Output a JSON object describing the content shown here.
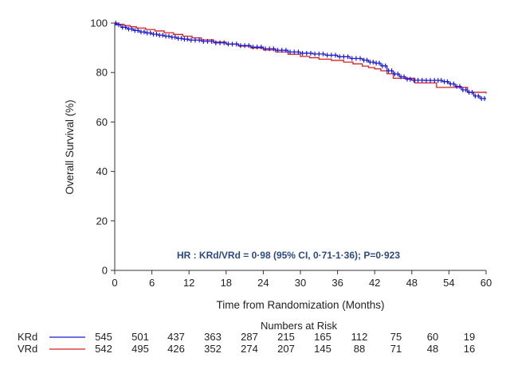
{
  "chart_data": {
    "type": "line",
    "subtype": "kaplan-meier",
    "title": "",
    "xlabel": "Time from Randomization (Months)",
    "ylabel": "Overall Survival (%)",
    "xlim": [
      0,
      60
    ],
    "ylim": [
      0,
      100
    ],
    "x_ticks": [
      0,
      6,
      12,
      18,
      24,
      30,
      36,
      42,
      48,
      54,
      60
    ],
    "y_ticks": [
      0,
      20,
      40,
      60,
      80,
      100
    ],
    "grid": false,
    "annotation": "HR : KRd/VRd = 0·98 (95% CI, 0·71-1·36);  P=0·923",
    "series": [
      {
        "name": "KRd",
        "color": "#1a1ad6",
        "censor_marks": true,
        "x": [
          0,
          0.3,
          1.0,
          2.0,
          3.0,
          4.0,
          5.0,
          6.0,
          7.0,
          8.0,
          9.0,
          10.0,
          11.0,
          12.0,
          14.0,
          16.0,
          18.0,
          20.0,
          22.0,
          24.0,
          26.0,
          28.0,
          30.0,
          32.0,
          34.0,
          36.0,
          38.0,
          40.0,
          41.0,
          42.0,
          43.0,
          44.0,
          45.0,
          46.0,
          47.0,
          48.0,
          50.0,
          52.0,
          53.0,
          54.0,
          55.0,
          56.0,
          57.0,
          58.0,
          59.0,
          60.0
        ],
        "y": [
          100,
          99.3,
          98.3,
          97.6,
          97.0,
          96.4,
          96.0,
          95.5,
          95.1,
          94.7,
          94.3,
          93.8,
          93.5,
          93.1,
          92.6,
          92.0,
          91.5,
          90.9,
          90.3,
          89.6,
          89.0,
          88.3,
          87.8,
          87.5,
          87.0,
          86.4,
          85.7,
          85.0,
          84.2,
          83.8,
          82.7,
          80.7,
          79.4,
          78.3,
          77.3,
          76.9,
          76.8,
          76.8,
          76.3,
          75.4,
          74.4,
          73.0,
          72.0,
          70.5,
          69.5,
          69.5
        ]
      },
      {
        "name": "VRd",
        "color": "#d42020",
        "censor_marks": false,
        "x": [
          0,
          0.5,
          1.5,
          2.5,
          3.5,
          5.0,
          6.5,
          8.0,
          9.5,
          11.0,
          12.5,
          14.0,
          16.0,
          18.0,
          20.0,
          22.0,
          24.0,
          26.0,
          28.0,
          30.0,
          31.5,
          33.0,
          35.0,
          37.0,
          38.5,
          40.0,
          41.0,
          42.0,
          43.0,
          44.0,
          45.0,
          46.0,
          47.0,
          48.5,
          50.0,
          51.0,
          52.0,
          54.0,
          55.0,
          56.0,
          57.0,
          58.0,
          59.0,
          60.0
        ],
        "y": [
          100,
          99.5,
          99.0,
          98.5,
          98.0,
          97.4,
          96.8,
          96.1,
          95.4,
          94.7,
          94.0,
          93.2,
          92.3,
          91.5,
          90.7,
          89.9,
          89.1,
          88.3,
          87.4,
          86.5,
          86.0,
          85.4,
          84.9,
          84.2,
          83.5,
          82.6,
          82.0,
          81.5,
          80.7,
          79.5,
          77.7,
          77.7,
          77.7,
          75.8,
          75.8,
          75.8,
          74.0,
          74.0,
          74.0,
          74.0,
          72.0,
          72.0,
          72.0,
          71.5
        ]
      }
    ],
    "risk_table": {
      "title": "Numbers at Risk",
      "times": [
        0,
        6,
        12,
        18,
        24,
        30,
        36,
        42,
        48,
        54,
        60
      ],
      "rows": [
        {
          "name": "KRd",
          "color": "#1a1ad6",
          "values": [
            545,
            501,
            437,
            363,
            287,
            215,
            165,
            112,
            75,
            60,
            19
          ]
        },
        {
          "name": "VRd",
          "color": "#d42020",
          "values": [
            542,
            495,
            426,
            352,
            274,
            207,
            145,
            88,
            71,
            48,
            16
          ]
        }
      ]
    }
  }
}
